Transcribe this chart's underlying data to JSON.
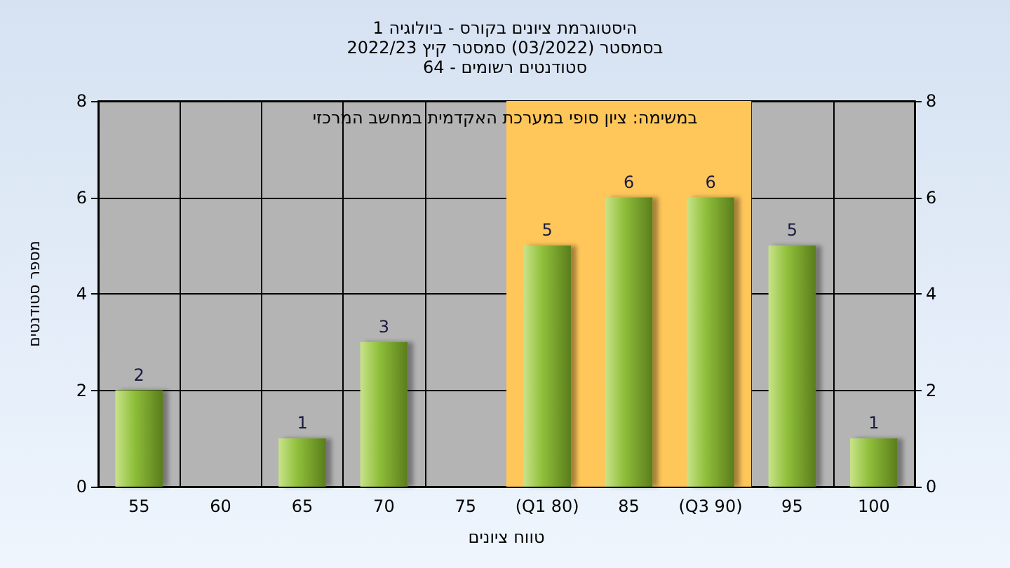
{
  "chart_data": {
    "type": "bar",
    "title": "היסטוגרמת ציונים בקורס - ביולוגיה 1",
    "subtitle": "בסמסטר (03/2022) סמסטר קיץ 2022/23\nסטודנטים רשומים - 64",
    "xlabel": "טווח ציונים",
    "ylabel": "מספר סטודנטים",
    "annotations": [
      "במשימה: ציון סופי במערכת האקדמית במחשב המרכזי"
    ],
    "categories": [
      "55",
      "60",
      "65",
      "70",
      "75",
      "(Q1 80)",
      "85",
      "(Q3 90)",
      "95",
      "100"
    ],
    "values": [
      2,
      0,
      1,
      3,
      0,
      5,
      6,
      6,
      5,
      1
    ],
    "color": "#8fbf3a",
    "value_labels": [
      "2",
      null,
      "1",
      "3",
      null,
      "5",
      "6",
      "6",
      "5",
      "1"
    ],
    "ylim": [
      0,
      8
    ],
    "yticks": [
      0,
      2,
      4,
      6,
      8
    ],
    "y2lim": [
      0,
      8
    ],
    "y2ticks": [
      0,
      2,
      4,
      6,
      8
    ],
    "bands": [
      {
        "axis": "x",
        "from": "(Q1 80)",
        "to": "(Q3 90)",
        "color": "#ffc65a"
      }
    ],
    "grid": true
  }
}
